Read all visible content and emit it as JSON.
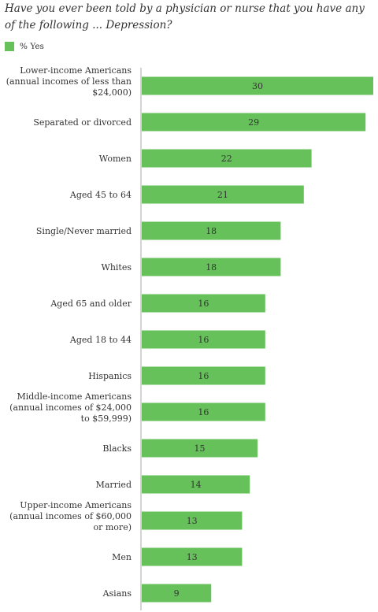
{
  "chart_data": {
    "type": "bar",
    "orientation": "horizontal",
    "title": "Have you ever been told by a physician or nurse that you have any of the following ... Depression?",
    "legend": "% Yes",
    "categories": [
      "Lower-income Americans (annual incomes of less than $24,000)",
      "Separated or divorced",
      "Women",
      "Aged 45 to 64",
      "Single/Never married",
      "Whites",
      "Aged 65 and older",
      "Aged 18 to 44",
      "Hispanics",
      "Middle-income Americans (annual incomes of $24,000 to $59,999)",
      "Blacks",
      "Married",
      "Upper-income Americans (annual incomes of $60,000 or more)",
      "Men",
      "Asians"
    ],
    "category_lines": [
      [
        "Lower-income Americans",
        "(annual incomes of less than",
        "$24,000)"
      ],
      [
        "Separated or divorced"
      ],
      [
        "Women"
      ],
      [
        "Aged 45 to 64"
      ],
      [
        "Single/Never married"
      ],
      [
        "Whites"
      ],
      [
        "Aged 65 and older"
      ],
      [
        "Aged 18 to 44"
      ],
      [
        "Hispanics"
      ],
      [
        "Middle-income Americans",
        "(annual incomes of $24,000",
        "to $59,999)"
      ],
      [
        "Blacks"
      ],
      [
        "Married"
      ],
      [
        "Upper-income Americans",
        "(annual incomes of $60,000",
        "or more)"
      ],
      [
        "Men"
      ],
      [
        "Asians"
      ]
    ],
    "values": [
      30,
      29,
      22,
      21,
      18,
      18,
      16,
      16,
      16,
      16,
      15,
      14,
      13,
      13,
      9
    ],
    "xlim": [
      0,
      30
    ],
    "grid": false,
    "bar_color": "#66c15a",
    "axis_color": "#aaaaaa"
  }
}
